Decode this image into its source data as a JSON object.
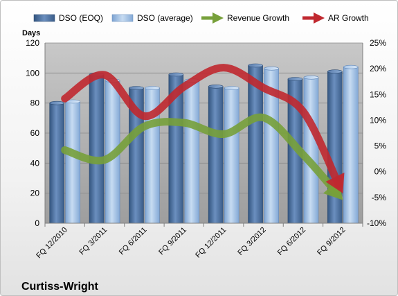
{
  "chart_data": {
    "type": "bar",
    "title": "",
    "categories": [
      "FQ 12/2010",
      "FQ 3/2011",
      "FQ 6/2011",
      "FQ 9/2011",
      "FQ 12/2011",
      "FQ 3/2012",
      "FQ 6/2012",
      "FQ 9/2012"
    ],
    "bar_series": [
      {
        "name": "DSO (EOQ)",
        "values": [
          80,
          99,
          90,
          99,
          91,
          105,
          96,
          101
        ],
        "color": "#4f6f9c"
      },
      {
        "name": "DSO (average)",
        "values": [
          81,
          95,
          90,
          95,
          90,
          103,
          97,
          104
        ],
        "color": "#9bbbe0"
      }
    ],
    "line_series": [
      {
        "name": "Revenue Growth",
        "values": [
          4.2,
          2.3,
          8.8,
          9.5,
          7.3,
          10.5,
          3.3,
          -5.5
        ],
        "color": "#77a03a",
        "unit": "%"
      },
      {
        "name": "AR Growth",
        "values": [
          14.2,
          18.8,
          10.8,
          16.5,
          20.2,
          16.3,
          11.7,
          -4.2
        ],
        "color": "#c0282f",
        "unit": "%"
      }
    ],
    "y_left": {
      "label": "Days",
      "min": 0,
      "max": 120,
      "ticks": [
        0,
        20,
        40,
        60,
        80,
        100,
        120
      ]
    },
    "y_right": {
      "min": -10,
      "max": 25,
      "ticks": [
        "-10%",
        "-5%",
        "0%",
        "5%",
        "10%",
        "15%",
        "20%",
        "25%"
      ]
    },
    "grid": "horizontal",
    "legend_position": "top"
  },
  "footer": {
    "company": "Curtiss-Wright"
  }
}
